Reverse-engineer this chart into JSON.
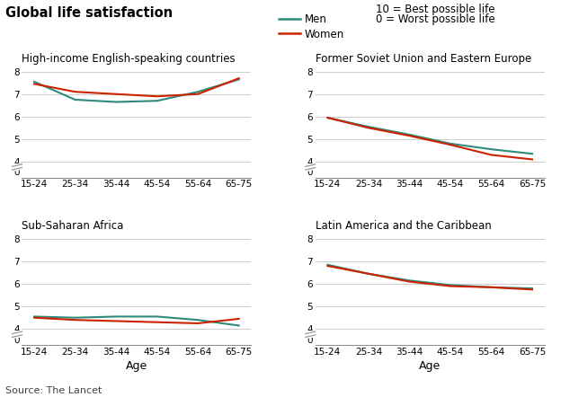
{
  "title": "Global life satisfaction",
  "legend_men": "Men",
  "legend_women": "Women",
  "legend_note1": "10 = Best possible life",
  "legend_note2": "0 = Worst possible life",
  "color_men": "#2e8b7a",
  "color_women": "#cc2200",
  "x_labels": [
    "15-24",
    "25-34",
    "35-44",
    "45-54",
    "55-64",
    "65-75"
  ],
  "xlabel": "Age",
  "source": "Source: The Lancet",
  "subplots": [
    {
      "title": "High-income English-speaking countries",
      "men": [
        7.55,
        6.75,
        6.65,
        6.7,
        7.1,
        7.65
      ],
      "women": [
        7.45,
        7.1,
        7.0,
        6.9,
        7.0,
        7.7
      ]
    },
    {
      "title": "Former Soviet Union and Eastern Europe",
      "men": [
        5.95,
        5.55,
        5.2,
        4.8,
        4.55,
        4.35
      ],
      "women": [
        5.95,
        5.5,
        5.15,
        4.75,
        4.3,
        4.1
      ]
    },
    {
      "title": "Sub-Saharan Africa",
      "men": [
        4.55,
        4.5,
        4.55,
        4.55,
        4.4,
        4.15
      ],
      "women": [
        4.5,
        4.4,
        4.35,
        4.3,
        4.25,
        4.45
      ]
    },
    {
      "title": "Latin America and the Caribbean",
      "men": [
        6.85,
        6.45,
        6.15,
        5.95,
        5.85,
        5.8
      ],
      "women": [
        6.8,
        6.45,
        6.1,
        5.9,
        5.85,
        5.75
      ]
    }
  ],
  "yticks_display": [
    0,
    4,
    5,
    6,
    7,
    8
  ],
  "grid_color": "#cccccc",
  "background_color": "#ffffff",
  "line_width": 1.5
}
